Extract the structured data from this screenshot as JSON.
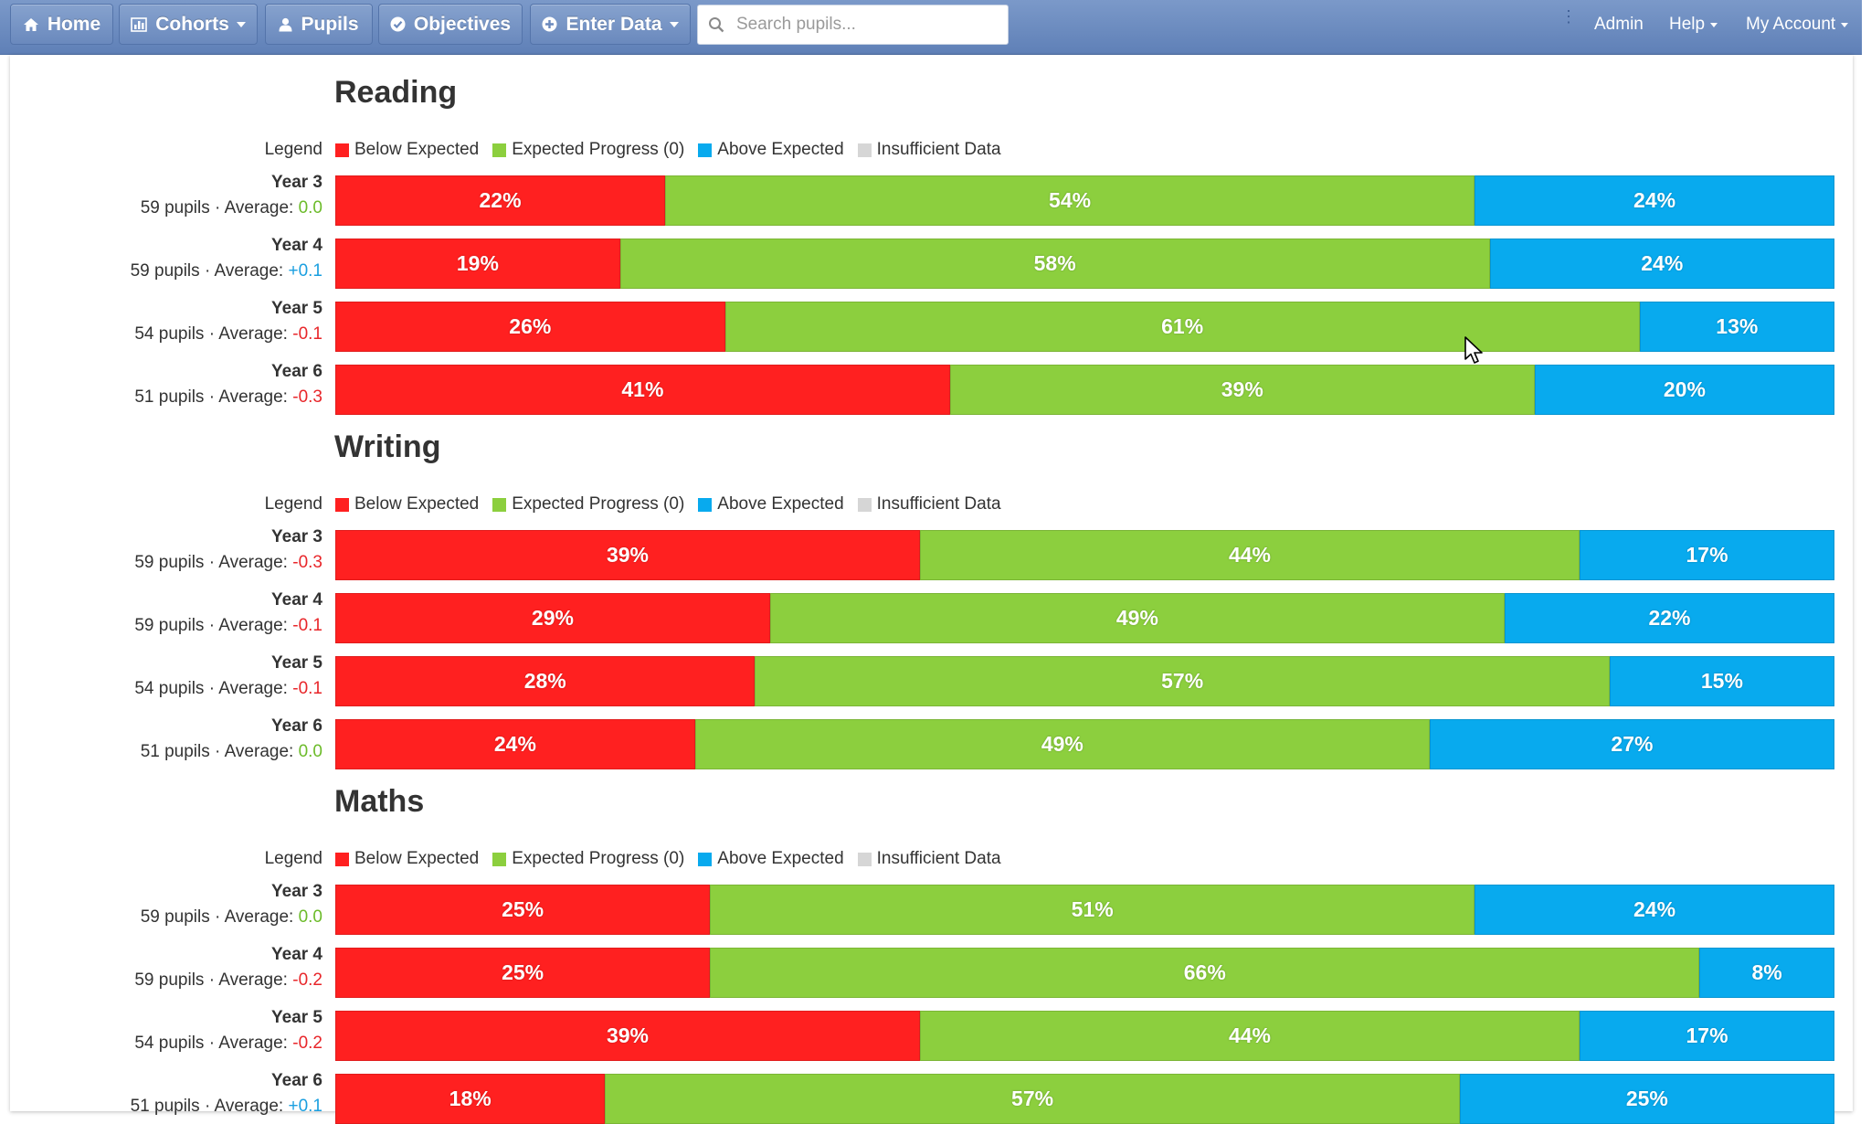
{
  "nav": {
    "home": "Home",
    "cohorts": "Cohorts",
    "pupils": "Pupils",
    "objectives": "Objectives",
    "enter_data": "Enter Data",
    "search_placeholder": "Search pupils...",
    "admin": "Admin",
    "help": "Help",
    "my_account": "My Account"
  },
  "colors": {
    "below": "#ff2020",
    "expected": "#8ccf3e",
    "above": "#08aaee",
    "insufficient": "#d6d6d6",
    "avg_zero": "#6cbb2a",
    "avg_pos": "#1a9fe0",
    "avg_neg": "#e8262a"
  },
  "legend": {
    "label": "Legend",
    "below": "Below Expected",
    "expected": "Expected Progress (0)",
    "above": "Above Expected",
    "insufficient": "Insufficient Data"
  },
  "sections": [
    {
      "title": "Reading",
      "rows": [
        {
          "year": "Year 3",
          "pupils": "59 pupils",
          "avg_label": "· Average:",
          "average": "0.0",
          "below": 22,
          "expected": 54,
          "above": 24
        },
        {
          "year": "Year 4",
          "pupils": "59 pupils",
          "avg_label": "· Average:",
          "average": "+0.1",
          "below": 19,
          "expected": 58,
          "above": 24
        },
        {
          "year": "Year 5",
          "pupils": "54 pupils",
          "avg_label": "· Average:",
          "average": "-0.1",
          "below": 26,
          "expected": 61,
          "above": 13
        },
        {
          "year": "Year 6",
          "pupils": "51 pupils",
          "avg_label": "· Average:",
          "average": "-0.3",
          "below": 41,
          "expected": 39,
          "above": 20
        }
      ]
    },
    {
      "title": "Writing",
      "rows": [
        {
          "year": "Year 3",
          "pupils": "59 pupils",
          "avg_label": "· Average:",
          "average": "-0.3",
          "below": 39,
          "expected": 44,
          "above": 17
        },
        {
          "year": "Year 4",
          "pupils": "59 pupils",
          "avg_label": "· Average:",
          "average": "-0.1",
          "below": 29,
          "expected": 49,
          "above": 22
        },
        {
          "year": "Year 5",
          "pupils": "54 pupils",
          "avg_label": "· Average:",
          "average": "-0.1",
          "below": 28,
          "expected": 57,
          "above": 15
        },
        {
          "year": "Year 6",
          "pupils": "51 pupils",
          "avg_label": "· Average:",
          "average": "0.0",
          "below": 24,
          "expected": 49,
          "above": 27
        }
      ]
    },
    {
      "title": "Maths",
      "rows": [
        {
          "year": "Year 3",
          "pupils": "59 pupils",
          "avg_label": "· Average:",
          "average": "0.0",
          "below": 25,
          "expected": 51,
          "above": 24
        },
        {
          "year": "Year 4",
          "pupils": "59 pupils",
          "avg_label": "· Average:",
          "average": "-0.2",
          "below": 25,
          "expected": 66,
          "above": 8
        },
        {
          "year": "Year 5",
          "pupils": "54 pupils",
          "avg_label": "· Average:",
          "average": "-0.2",
          "below": 39,
          "expected": 44,
          "above": 17
        },
        {
          "year": "Year 6",
          "pupils": "51 pupils",
          "avg_label": "· Average:",
          "average": "+0.1",
          "below": 18,
          "expected": 57,
          "above": 25
        }
      ]
    }
  ]
}
